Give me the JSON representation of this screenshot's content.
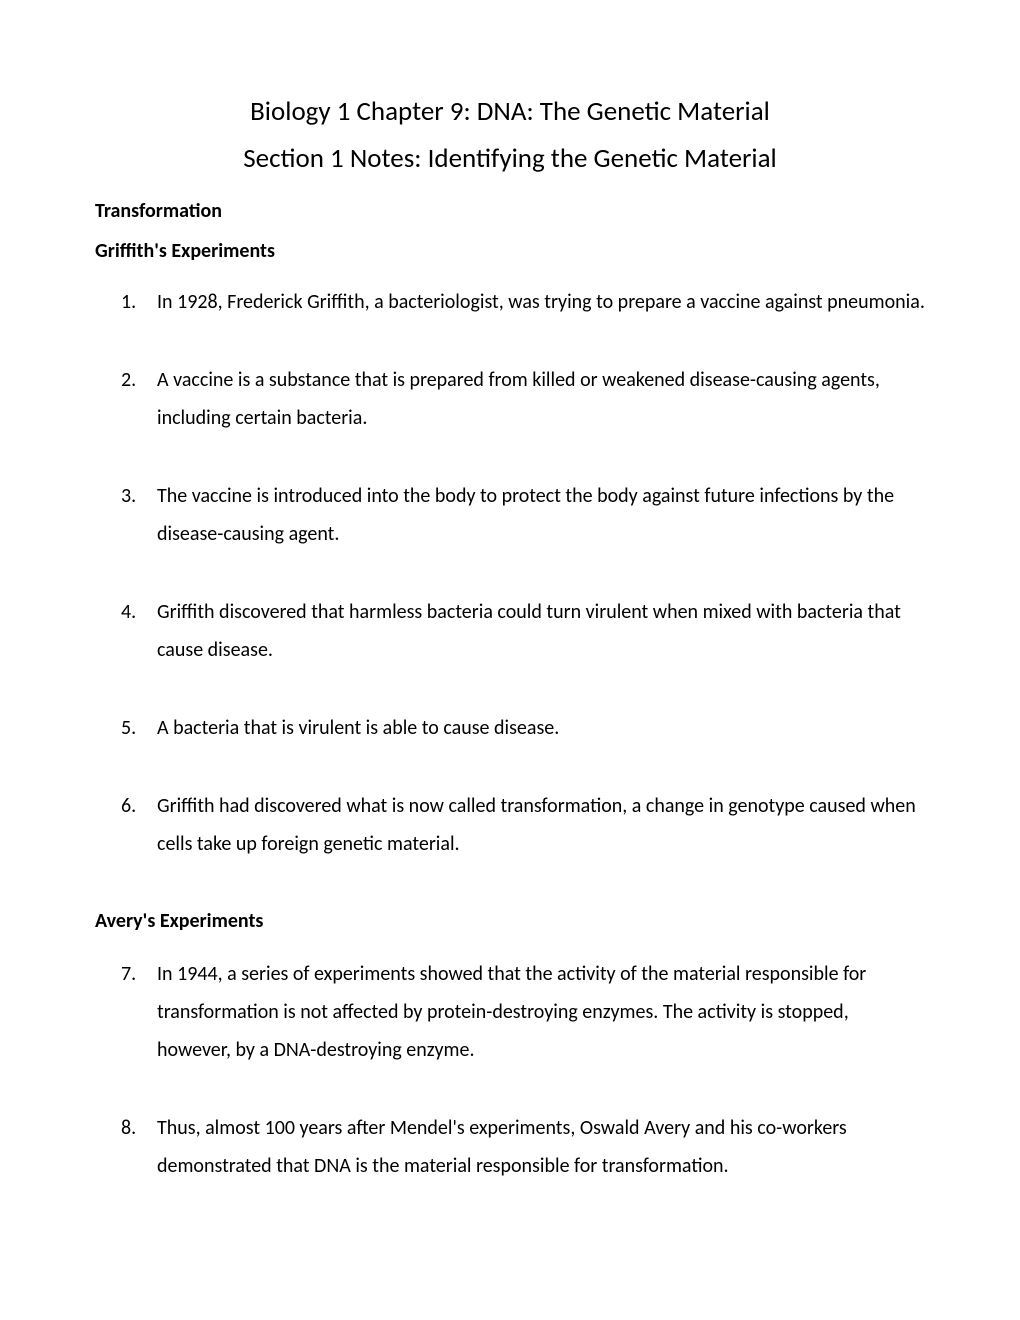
{
  "title_main": "Biology 1 Chapter 9:  DNA:  The Genetic Material",
  "title_sub": "Section 1 Notes:  Identifying the Genetic Material",
  "section_transformation": "Transformation",
  "subsection_griffith": "Griffith's Experiments",
  "subsection_avery": "Avery's Experiments",
  "items": {
    "n1": "1.",
    "t1": "In 1928, Frederick Griffith, a bacteriologist, was trying to prepare a vaccine against pneumonia.",
    "n2": "2.",
    "t2": "A vaccine is a substance that is prepared from killed or weakened disease-causing agents, including certain bacteria.",
    "n3": "3.",
    "t3": "The vaccine is introduced into the body to protect the body against future infections by the disease-causing agent.",
    "n4": "4.",
    "t4": "Griffith discovered that harmless bacteria could turn virulent when mixed with bacteria that cause disease.",
    "n5": "5.",
    "t5": "A bacteria that is virulent is able to cause disease.",
    "n6": "6.",
    "t6": "Griffith had discovered what is now called transformation, a change in genotype caused when cells take up foreign genetic material.",
    "n7": "7.",
    "t7": "In 1944, a series of experiments showed that the activity of the material responsible for transformation is not affected by protein-destroying enzymes. The activity is stopped, however, by a DNA-destroying enzyme.",
    "n8": "8.",
    "t8": "Thus, almost 100 years after Mendel's experiments, Oswald Avery and his co-workers demonstrated that DNA is the material responsible for transformation."
  },
  "colors": {
    "background": "#ffffff",
    "text": "#000000"
  },
  "typography": {
    "title_fontsize": 27,
    "heading_fontsize": 20,
    "body_fontsize": 20,
    "font_family": "Calibri"
  }
}
